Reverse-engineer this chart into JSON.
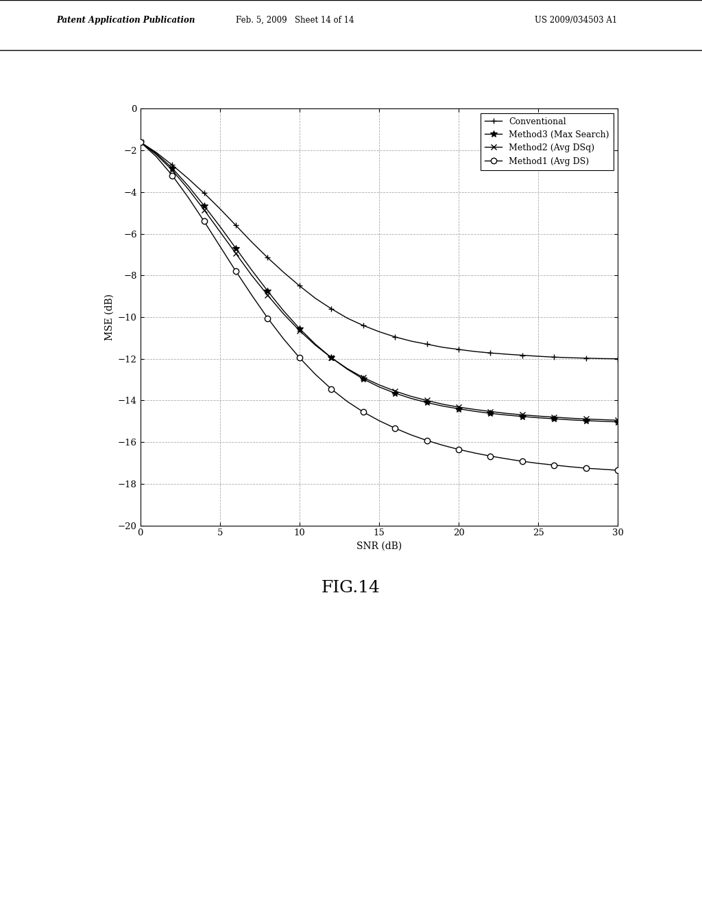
{
  "title": "FIG.14",
  "header_left": "Patent Application Publication",
  "header_center": "Feb. 5, 2009   Sheet 14 of 14",
  "header_right": "US 2009/034503 A1",
  "xlabel": "SNR (dB)",
  "ylabel": "MSE (dB)",
  "xlim": [
    0,
    30
  ],
  "ylim": [
    -20,
    0
  ],
  "xticks": [
    0,
    5,
    10,
    15,
    20,
    25,
    30
  ],
  "yticks": [
    0,
    -2,
    -4,
    -6,
    -8,
    -10,
    -12,
    -14,
    -16,
    -18,
    -20
  ],
  "snr": [
    0,
    1,
    2,
    3,
    4,
    5,
    6,
    7,
    8,
    9,
    10,
    11,
    12,
    13,
    14,
    15,
    16,
    17,
    18,
    19,
    20,
    21,
    22,
    23,
    24,
    25,
    26,
    27,
    28,
    29,
    30
  ],
  "conventional": [
    -1.6,
    -2.1,
    -2.7,
    -3.35,
    -4.05,
    -4.8,
    -5.6,
    -6.4,
    -7.15,
    -7.85,
    -8.5,
    -9.1,
    -9.6,
    -10.05,
    -10.4,
    -10.7,
    -10.95,
    -11.15,
    -11.3,
    -11.45,
    -11.55,
    -11.65,
    -11.72,
    -11.78,
    -11.83,
    -11.88,
    -11.92,
    -11.95,
    -11.97,
    -11.99,
    -12.0
  ],
  "method3": [
    -1.6,
    -2.15,
    -2.85,
    -3.7,
    -4.65,
    -5.65,
    -6.7,
    -7.75,
    -8.75,
    -9.7,
    -10.55,
    -11.3,
    -11.95,
    -12.5,
    -12.97,
    -13.35,
    -13.65,
    -13.9,
    -14.1,
    -14.27,
    -14.4,
    -14.52,
    -14.62,
    -14.7,
    -14.77,
    -14.83,
    -14.88,
    -14.93,
    -14.97,
    -15.0,
    -15.03
  ],
  "method2": [
    -1.6,
    -2.2,
    -2.95,
    -3.85,
    -4.85,
    -5.9,
    -6.95,
    -8.0,
    -8.95,
    -9.85,
    -10.65,
    -11.35,
    -11.95,
    -12.47,
    -12.9,
    -13.25,
    -13.55,
    -13.8,
    -14.0,
    -14.18,
    -14.32,
    -14.43,
    -14.53,
    -14.62,
    -14.69,
    -14.75,
    -14.8,
    -14.85,
    -14.89,
    -14.92,
    -14.95
  ],
  "method1": [
    -1.6,
    -2.3,
    -3.2,
    -4.25,
    -5.4,
    -6.6,
    -7.8,
    -8.95,
    -10.05,
    -11.05,
    -11.95,
    -12.75,
    -13.45,
    -14.05,
    -14.55,
    -14.97,
    -15.33,
    -15.65,
    -15.92,
    -16.15,
    -16.35,
    -16.52,
    -16.67,
    -16.8,
    -16.92,
    -17.02,
    -17.1,
    -17.18,
    -17.25,
    -17.3,
    -17.35
  ],
  "line_color": "#000000",
  "background_color": "#ffffff",
  "page_background": "#d8d8d8",
  "legend_labels": [
    "Conventional",
    "Method3 (Max Search)",
    "Method2 (Avg DSq)",
    "Method1 (Avg DS)"
  ]
}
